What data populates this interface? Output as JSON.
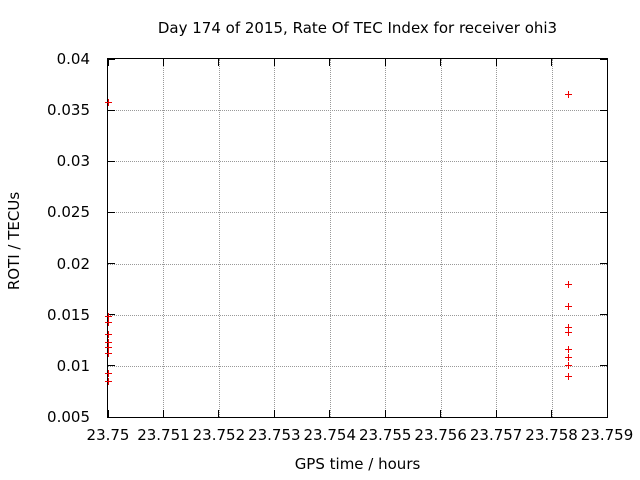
{
  "chart_data": {
    "type": "scatter",
    "title": "Day 174 of 2015, Rate Of TEC Index for receiver ohi3",
    "xlabel": "GPS time / hours",
    "ylabel": "ROTI / TECUs",
    "xlim": [
      23.75,
      23.759
    ],
    "ylim": [
      0.005,
      0.04
    ],
    "grid": true,
    "legend": "none",
    "marker": "plus",
    "marker_color": "#ee0000",
    "axis_color": "#000000",
    "grid_color": "#999999",
    "x_ticks": [
      {
        "value": 23.75,
        "label": "23.75"
      },
      {
        "value": 23.751,
        "label": "23.751"
      },
      {
        "value": 23.752,
        "label": "23.752"
      },
      {
        "value": 23.753,
        "label": "23.753"
      },
      {
        "value": 23.754,
        "label": "23.754"
      },
      {
        "value": 23.755,
        "label": "23.755"
      },
      {
        "value": 23.756,
        "label": "23.756"
      },
      {
        "value": 23.757,
        "label": "23.757"
      },
      {
        "value": 23.758,
        "label": "23.758"
      },
      {
        "value": 23.759,
        "label": "23.759"
      }
    ],
    "y_ticks": [
      {
        "value": 0.005,
        "label": "0.005"
      },
      {
        "value": 0.01,
        "label": "0.01"
      },
      {
        "value": 0.015,
        "label": "0.015"
      },
      {
        "value": 0.02,
        "label": "0.02"
      },
      {
        "value": 0.025,
        "label": "0.025"
      },
      {
        "value": 0.03,
        "label": "0.03"
      },
      {
        "value": 0.035,
        "label": "0.035"
      },
      {
        "value": 0.04,
        "label": "0.04"
      }
    ],
    "series": [
      {
        "name": "ROTI",
        "points": [
          [
            23.75,
            0.0358
          ],
          [
            23.75,
            0.0149
          ],
          [
            23.75,
            0.0143
          ],
          [
            23.75,
            0.0131
          ],
          [
            23.75,
            0.0123
          ],
          [
            23.75,
            0.0118
          ],
          [
            23.75,
            0.0113
          ],
          [
            23.75,
            0.0093
          ],
          [
            23.75,
            0.0085
          ],
          [
            23.7583,
            0.0366
          ],
          [
            23.7583,
            0.018
          ],
          [
            23.7583,
            0.0159
          ],
          [
            23.7583,
            0.0138
          ],
          [
            23.7583,
            0.0133
          ],
          [
            23.7583,
            0.0116
          ],
          [
            23.7583,
            0.0109
          ],
          [
            23.7583,
            0.0101
          ],
          [
            23.7583,
            0.009
          ]
        ]
      }
    ]
  }
}
